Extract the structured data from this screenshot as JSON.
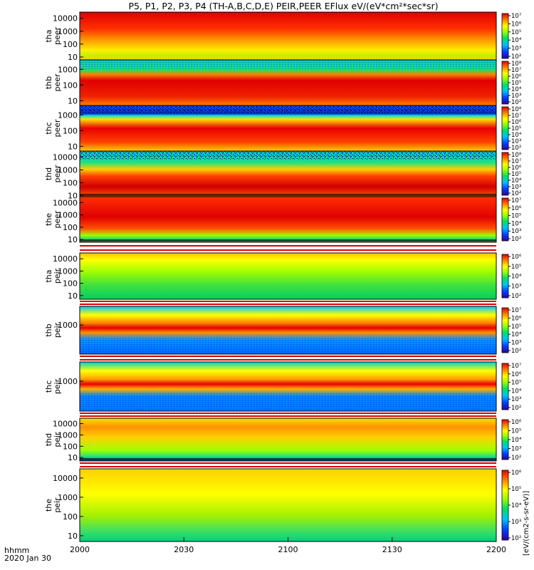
{
  "chart_data": {
    "type": "heatmap",
    "title": "P5, P1, P2, P3, P4 (TH-A,B,C,D,E) PEIR,PEER EFlux eV/(eV*cm²*sec*sr)",
    "x_axis": {
      "ticks": [
        "2000",
        "2030",
        "2100",
        "2130",
        "2200"
      ],
      "label": "hhmm",
      "date": "2020 Jan 30"
    },
    "colorbar_label": "[eV/(cm2-s-sr-eV)]",
    "panels": [
      {
        "id": "tha-peer",
        "probe": "tha",
        "species": "peer",
        "yticks": [
          "10",
          "100",
          "1000",
          "10000"
        ],
        "cbar_ticks": [
          "10²",
          "10³",
          "10⁴",
          "10⁵",
          "10⁶",
          "10⁷"
        ],
        "ylim": [
          6,
          30000
        ]
      },
      {
        "id": "thb-peer",
        "probe": "thb",
        "species": "peer",
        "yticks": [
          "10",
          "100",
          "1000"
        ],
        "cbar_ticks": [
          "10²",
          "10³",
          "10⁴",
          "10⁵",
          "10⁶",
          "10⁷",
          "10⁸"
        ],
        "ylim": [
          5,
          4000
        ]
      },
      {
        "id": "thc-peer",
        "probe": "thc",
        "species": "peer",
        "yticks": [
          "10",
          "100",
          "1000"
        ],
        "cbar_ticks": [
          "10²",
          "10³",
          "10⁴",
          "10⁵",
          "10⁶",
          "10⁷",
          "10⁸"
        ],
        "ylim": [
          5,
          4000
        ]
      },
      {
        "id": "thd-peer",
        "probe": "thd",
        "species": "peer",
        "yticks": [
          "10",
          "100",
          "1000",
          "10000"
        ],
        "cbar_ticks": [
          "10²",
          "10³",
          "10⁴",
          "10⁵",
          "10⁶",
          "10⁷",
          "10⁸"
        ],
        "ylim": [
          8,
          30000
        ]
      },
      {
        "id": "the-peer",
        "probe": "the",
        "species": "peer",
        "yticks": [
          "10",
          "100",
          "1000",
          "10000"
        ],
        "cbar_ticks": [
          "10²",
          "10³",
          "10⁴",
          "10⁵",
          "10⁶",
          "10⁷"
        ],
        "ylim": [
          6,
          30000
        ]
      },
      {
        "id": "tha-peir",
        "probe": "tha",
        "species": "peir",
        "yticks": [
          "10",
          "100",
          "1000",
          "10000"
        ],
        "cbar_ticks": [
          "10²",
          "10³",
          "10⁴",
          "10⁵",
          "10⁶"
        ],
        "ylim": [
          5,
          30000
        ]
      },
      {
        "id": "thb-peir",
        "probe": "thb",
        "species": "peir",
        "yticks": [
          "1000"
        ],
        "cbar_ticks": [
          "10²",
          "10³",
          "10⁴",
          "10⁵",
          "10⁶",
          "10⁷"
        ],
        "ylim": [
          5,
          30000
        ]
      },
      {
        "id": "thc-peir",
        "probe": "thc",
        "species": "peir",
        "yticks": [
          "1000"
        ],
        "cbar_ticks": [
          "10²",
          "10³",
          "10⁴",
          "10⁵",
          "10⁶",
          "10⁷"
        ],
        "ylim": [
          5,
          30000
        ]
      },
      {
        "id": "thd-peir",
        "probe": "thd",
        "species": "peir",
        "yticks": [
          "10",
          "100",
          "1000",
          "10000"
        ],
        "cbar_ticks": [
          "10²",
          "10³",
          "10⁴",
          "10⁵",
          "10⁶"
        ],
        "ylim": [
          5,
          30000
        ]
      },
      {
        "id": "the-peir",
        "probe": "the",
        "species": "peir",
        "yticks": [
          "10",
          "100",
          "1000",
          "10000"
        ],
        "cbar_ticks": [
          "10²",
          "10³",
          "10⁴",
          "10⁵",
          "10⁶"
        ],
        "ylim": [
          5,
          30000
        ]
      }
    ]
  }
}
